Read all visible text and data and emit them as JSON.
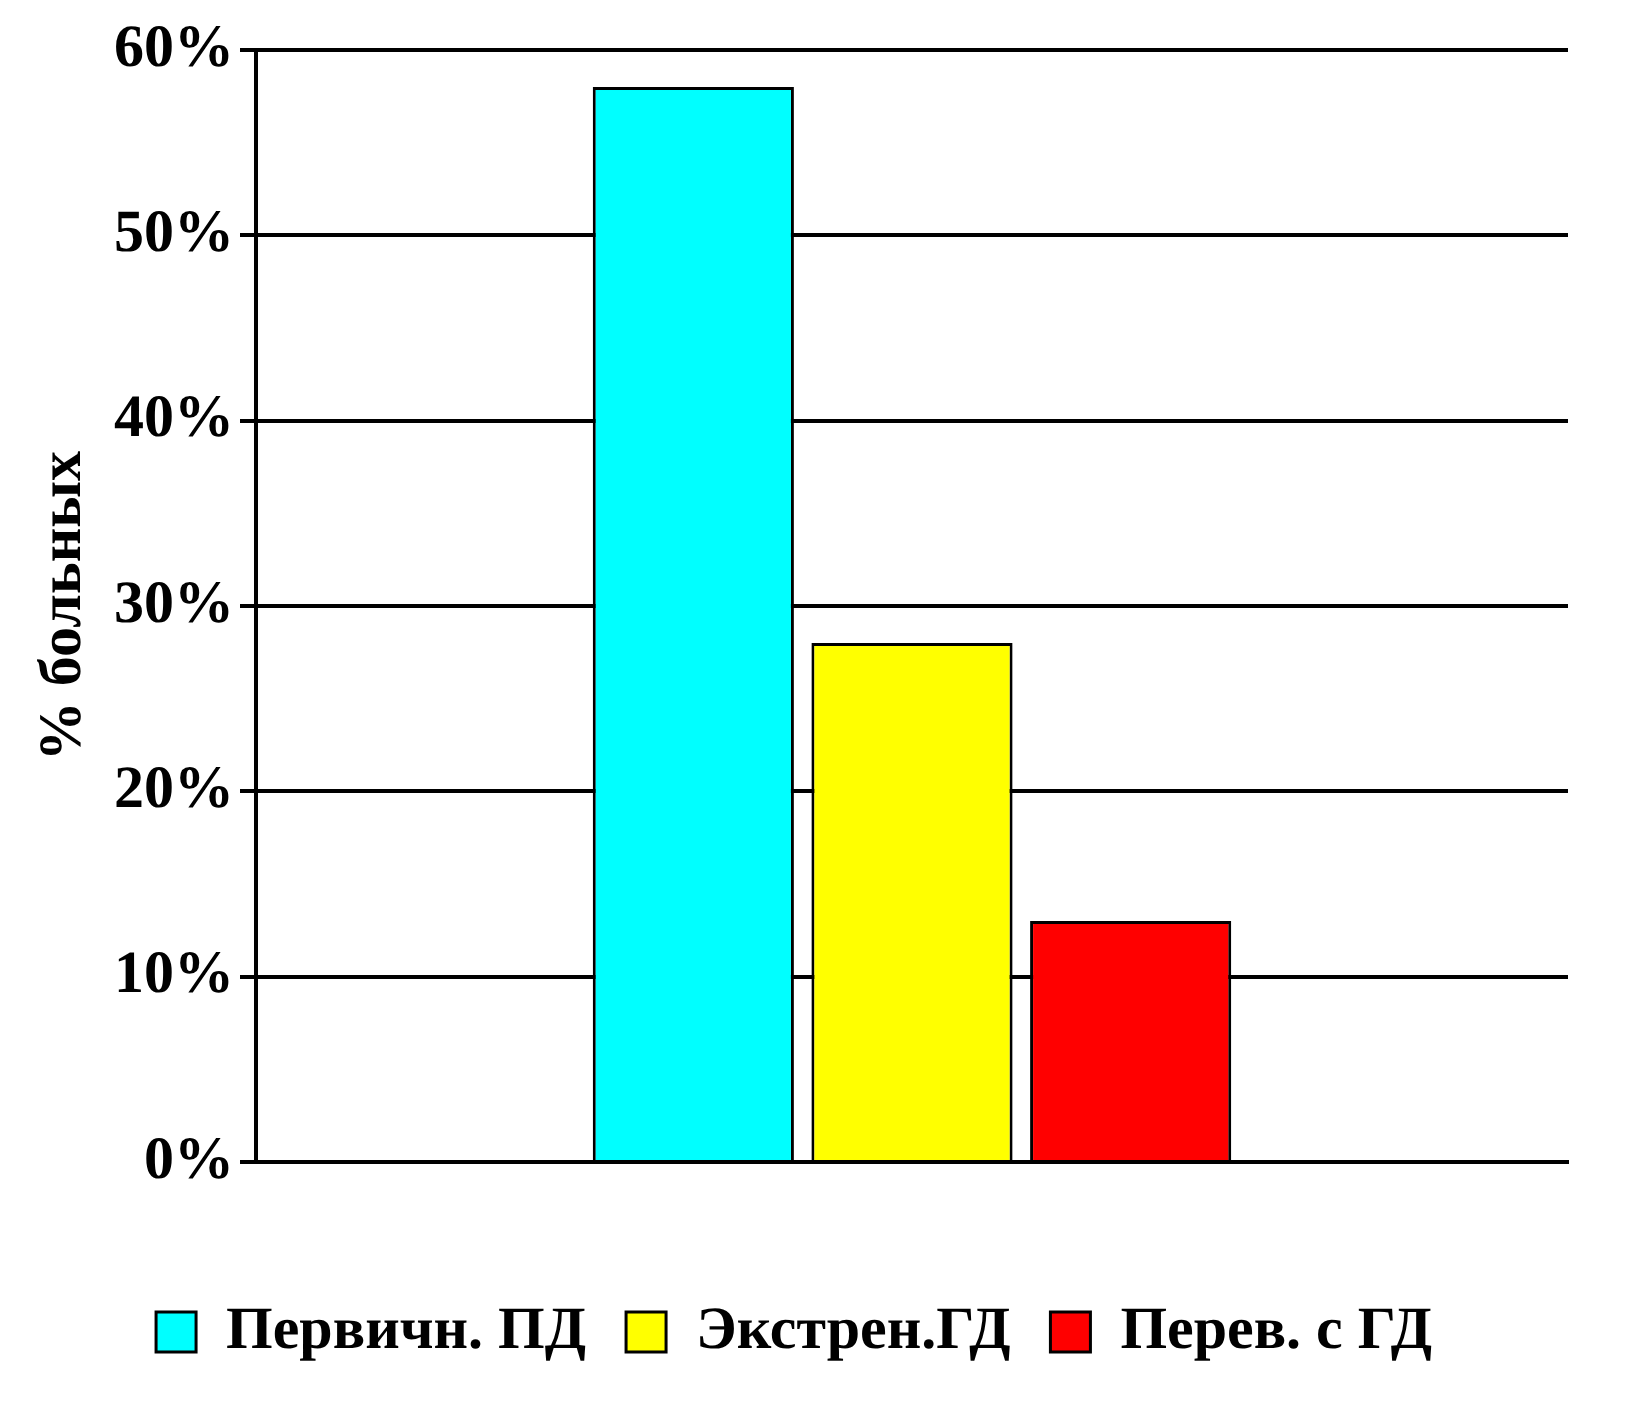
{
  "chart_data": {
    "type": "bar",
    "ylabel": "% больных",
    "categories": [
      null
    ],
    "series": [
      {
        "name": "Первичн. ПД",
        "color": "#00ffff",
        "values": [
          58
        ]
      },
      {
        "name": "Экстрен.ГД",
        "color": "#ffff00",
        "values": [
          28
        ]
      },
      {
        "name": "Перев. с ГД",
        "color": "#ff0000",
        "values": [
          13
        ]
      }
    ],
    "ylim": [
      0,
      60
    ],
    "yticks": [
      {
        "value": 0,
        "label": "0%"
      },
      {
        "value": 10,
        "label": "10%"
      },
      {
        "value": 20,
        "label": "20%"
      },
      {
        "value": 30,
        "label": "30%"
      },
      {
        "value": 40,
        "label": "40%"
      },
      {
        "value": 50,
        "label": "50%"
      },
      {
        "value": 60,
        "label": "60%"
      }
    ],
    "grid": "y",
    "legend": "bottom"
  }
}
